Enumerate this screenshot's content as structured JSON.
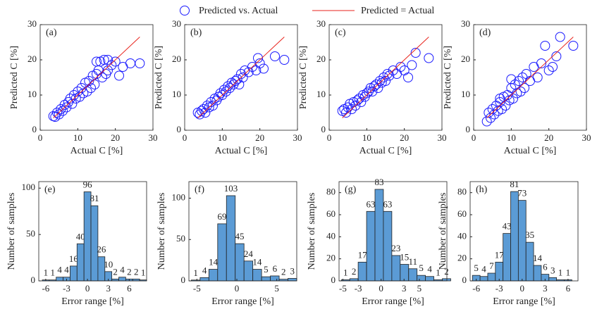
{
  "legend": [
    {
      "name": "Predicted vs. Actual",
      "color": "#1a1aff"
    },
    {
      "name": "Predicted = Actual",
      "color": "#e8231c"
    }
  ],
  "chart_data": [
    {
      "type": "scatter",
      "panel": "(a)",
      "xlabel": "Actual C [%]",
      "ylabel": "Predicted C [%]",
      "xlim": [
        0,
        30
      ],
      "ylim": [
        0,
        30
      ],
      "xticks": [
        0,
        10,
        20,
        30
      ],
      "yticks": [
        0,
        10,
        20,
        30
      ],
      "series": [
        {
          "x": [
            3.5,
            4,
            4.5,
            5,
            5.5,
            6,
            6.5,
            7,
            7.5,
            8,
            8.5,
            9,
            9.5,
            10,
            10.5,
            11,
            11.5,
            12,
            12.5,
            13,
            13.5,
            14,
            14.5,
            15,
            15.5,
            16,
            16.5,
            17,
            17.5,
            18,
            19,
            20,
            21,
            22,
            24,
            26.5,
            15,
            18
          ],
          "values": [
            4,
            3.8,
            5,
            4.5,
            6,
            5.5,
            7.2,
            6.5,
            8,
            9,
            7.5,
            10,
            9,
            11,
            9.5,
            12,
            10.5,
            13.5,
            11,
            14,
            12,
            15.5,
            13,
            16,
            17,
            19.5,
            15,
            20,
            16,
            17,
            18.5,
            19.5,
            15.5,
            18,
            19,
            19,
            19.5,
            20
          ]
        },
        {
          "x": [
            3.5,
            26.5
          ],
          "values": [
            3.5,
            26.5
          ]
        }
      ]
    },
    {
      "type": "scatter",
      "panel": "(b)",
      "xlabel": "Actual C [%]",
      "ylabel": "Predicted C [%]",
      "xlim": [
        0,
        30
      ],
      "ylim": [
        0,
        30
      ],
      "xticks": [
        0,
        10,
        20,
        30
      ],
      "yticks": [
        0,
        10,
        20,
        30
      ],
      "series": [
        {
          "x": [
            3.5,
            4,
            4.5,
            5,
            5.5,
            6,
            6.5,
            7,
            7.5,
            8,
            8.5,
            9,
            9.5,
            10,
            10.5,
            11,
            11.5,
            12,
            12.5,
            13,
            13.5,
            14,
            14.5,
            15,
            15.5,
            16,
            17,
            18,
            19,
            20,
            21,
            24,
            26.5,
            19.5
          ],
          "values": [
            5,
            4.5,
            5.5,
            6,
            5,
            7,
            6.5,
            8,
            7,
            9,
            8.5,
            9.5,
            10.5,
            10,
            11.5,
            11,
            12.5,
            12,
            13.5,
            13,
            14,
            14.5,
            13,
            16,
            15,
            17,
            16.5,
            18,
            17,
            19,
            17.5,
            21,
            20,
            20.5
          ]
        },
        {
          "x": [
            3.5,
            26.5
          ],
          "values": [
            3.5,
            26.5
          ]
        }
      ]
    },
    {
      "type": "scatter",
      "panel": "(c)",
      "xlabel": "Actual C [%]",
      "ylabel": "Predicted C [%]",
      "xlim": [
        0,
        30
      ],
      "ylim": [
        0,
        30
      ],
      "xticks": [
        0,
        10,
        20,
        30
      ],
      "yticks": [
        0,
        10,
        20,
        30
      ],
      "series": [
        {
          "x": [
            3.5,
            4,
            4.5,
            5,
            5.5,
            6,
            6.5,
            7,
            7.5,
            8,
            8.5,
            9,
            9.5,
            10,
            10.5,
            11,
            11.5,
            12,
            12.5,
            13,
            13.5,
            14,
            14.5,
            15,
            15.5,
            16,
            17,
            18,
            19,
            20,
            21,
            22,
            23,
            26.5
          ],
          "values": [
            5.5,
            6,
            5,
            6.5,
            7.5,
            6,
            8,
            7,
            8.5,
            9,
            8,
            10,
            9.5,
            10.5,
            11,
            12,
            11,
            12.5,
            13,
            12,
            14,
            13.5,
            15,
            14,
            16,
            15.5,
            17,
            16,
            18,
            17,
            15,
            18.5,
            22,
            20.5
          ]
        },
        {
          "x": [
            3.5,
            26.5
          ],
          "values": [
            3.5,
            26.5
          ]
        }
      ]
    },
    {
      "type": "scatter",
      "panel": "(d)",
      "xlabel": "Actual C [%]",
      "ylabel": "Predicted C [%]",
      "xlim": [
        0,
        30
      ],
      "ylim": [
        0,
        30
      ],
      "xticks": [
        0,
        10,
        20,
        30
      ],
      "yticks": [
        0,
        10,
        20,
        30
      ],
      "series": [
        {
          "x": [
            3.5,
            4,
            4.5,
            5,
            5.5,
            6,
            6.5,
            7,
            7.5,
            8,
            8.5,
            9,
            9.5,
            10,
            10.5,
            11,
            11.5,
            12,
            12.5,
            13,
            13.5,
            14,
            15,
            16,
            17,
            18,
            19,
            20,
            21,
            22,
            23,
            26.5,
            7,
            10
          ],
          "values": [
            2.5,
            5,
            3.5,
            6,
            4.5,
            7,
            5.5,
            8,
            6,
            9.5,
            7,
            10,
            8.5,
            12,
            9,
            13,
            10.5,
            14,
            11,
            15,
            12,
            16,
            14,
            18,
            15,
            19,
            24,
            17,
            18,
            21,
            26.5,
            24,
            9,
            14.5
          ]
        },
        {
          "x": [
            3.5,
            26.5
          ],
          "values": [
            3.5,
            26.5
          ]
        }
      ]
    },
    {
      "type": "histogram",
      "panel": "(e)",
      "xlabel": "Error range [%]",
      "ylabel": "Number of samples",
      "color": "#5b9bd5",
      "xlim": [
        -7,
        8.5
      ],
      "ylim": [
        0,
        107
      ],
      "xticks": [
        -6,
        -3,
        0,
        3,
        6
      ],
      "yticks": [
        0,
        50,
        100
      ],
      "bins": [
        -6.5,
        -5.5,
        -4.5,
        -3.5,
        -2.5,
        -1.5,
        -0.5,
        0.5,
        1.5,
        2.5,
        3.5,
        4.5,
        5.5,
        6.5,
        7.5,
        8.5
      ],
      "values": [
        1,
        1,
        4,
        4,
        16,
        40,
        96,
        81,
        26,
        10,
        2,
        4,
        2,
        2,
        1
      ]
    },
    {
      "type": "histogram",
      "panel": "(f)",
      "xlabel": "Error range [%]",
      "ylabel": "Number of samples",
      "color": "#5b9bd5",
      "xlim": [
        -6,
        7.5
      ],
      "ylim": [
        0,
        120
      ],
      "xticks": [
        -5,
        0,
        5
      ],
      "yticks": [
        0,
        50,
        100
      ],
      "bins": [
        -5.7,
        -4.6,
        -3.5,
        -2.4,
        -1.3,
        -0.2,
        0.9,
        2.0,
        3.1,
        4.2,
        5.3,
        6.4,
        7.5
      ],
      "values": [
        1,
        4,
        14,
        69,
        103,
        45,
        24,
        14,
        5,
        6,
        2,
        3
      ]
    },
    {
      "type": "histogram",
      "panel": "(g)",
      "xlabel": "Error range [%]",
      "ylabel": "Number of samples",
      "color": "#5b9bd5",
      "xlim": [
        -5.5,
        8.6
      ],
      "ylim": [
        0,
        90
      ],
      "xticks": [
        -5,
        -3,
        0,
        3,
        5
      ],
      "yticks": [
        0,
        20,
        40,
        60,
        80
      ],
      "bins": [
        -5.2,
        -4.1,
        -3.0,
        -1.9,
        -0.8,
        0.3,
        1.4,
        2.5,
        3.6,
        4.7,
        5.8,
        6.9,
        8.0,
        9.1
      ],
      "values": [
        1,
        2,
        17,
        63,
        83,
        63,
        23,
        15,
        11,
        5,
        4,
        1,
        2
      ]
    },
    {
      "type": "histogram",
      "panel": "(h)",
      "xlabel": "Error range [%]",
      "ylabel": "Number of samples",
      "color": "#5b9bd5",
      "xlim": [
        -6.8,
        7.3
      ],
      "ylim": [
        0,
        90
      ],
      "xticks": [
        -6,
        -3,
        0,
        3,
        6
      ],
      "yticks": [
        0,
        20,
        40,
        60,
        80
      ],
      "bins": [
        -6.5,
        -5.5,
        -4.5,
        -3.5,
        -2.5,
        -1.5,
        -0.5,
        0.5,
        1.5,
        2.5,
        3.5,
        4.5,
        5.5,
        6.5
      ],
      "values": [
        5,
        4,
        7,
        17,
        43,
        81,
        73,
        35,
        14,
        6,
        3,
        1,
        1
      ]
    }
  ]
}
